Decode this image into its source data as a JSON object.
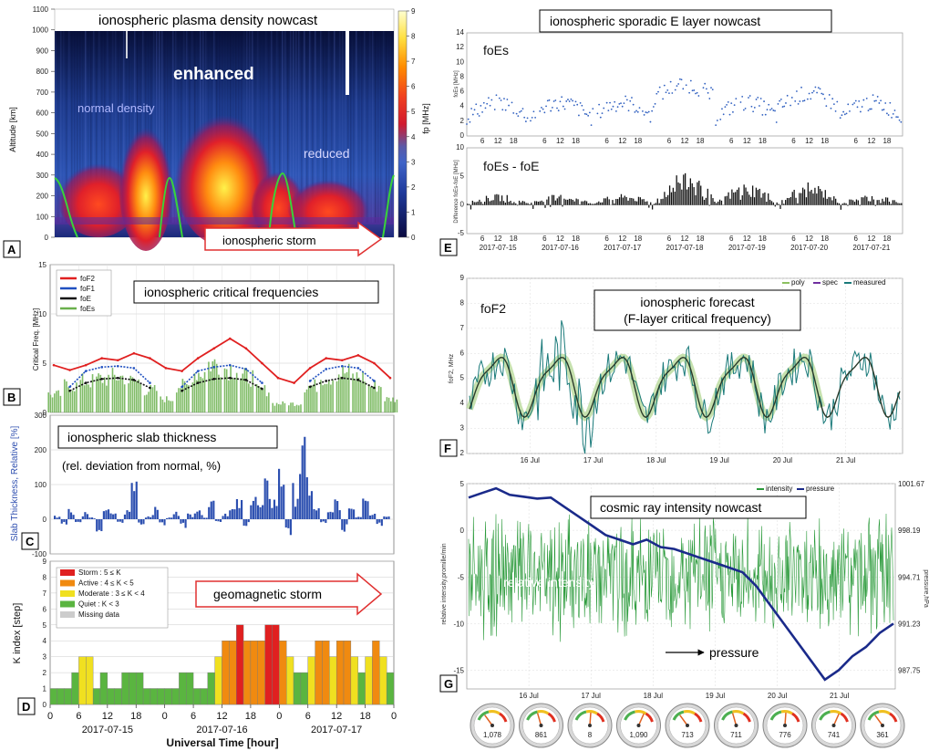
{
  "chart_data": [
    {
      "id": "A",
      "type": "heatmap",
      "title": "ionospheric plasma density   nowcast",
      "ylabel": "Altitude [km]",
      "colorbar_label": "fp [MHz]",
      "ylim": [
        0,
        1100
      ],
      "yticks": [
        "0",
        "100",
        "200",
        "300",
        "400",
        "500",
        "600",
        "700",
        "800",
        "900",
        "1000",
        "1100"
      ],
      "colorbar_ticks": [
        "0",
        "1",
        "2",
        "3",
        "4",
        "5",
        "6",
        "7",
        "8",
        "9"
      ],
      "annotations": [
        "enhanced",
        "normal density",
        "reduced",
        "ionospheric storm"
      ],
      "panel_label": "A"
    },
    {
      "id": "B",
      "type": "line",
      "title": "ionospheric critical frequencies",
      "ylabel": "Critical Freq. [MHz]",
      "ylim": [
        0,
        15
      ],
      "yticks": [
        "0",
        "5",
        "10",
        "15"
      ],
      "series": [
        {
          "name": "foF2",
          "color": "#e02020",
          "values": [
            4.8,
            4.3,
            4.8,
            5.5,
            5.3,
            6.0,
            5.5,
            4.5,
            4.2,
            5.5,
            6.5,
            7.5,
            6.5,
            5.0,
            3.5,
            3.0,
            4.5,
            5.5,
            5.3,
            5.8,
            5.0,
            3.5
          ]
        },
        {
          "name": "foF1",
          "color": "#2050c0",
          "values": [
            0,
            2.6,
            4.2,
            4.6,
            4.7,
            4.5,
            3.0,
            0,
            2.6,
            4.2,
            4.6,
            4.8,
            4.4,
            3.0,
            0,
            0,
            3.2,
            4.4,
            4.7,
            4.5,
            3.2,
            0
          ]
        },
        {
          "name": "foE",
          "color": "#111111",
          "values": [
            0,
            2.2,
            3.0,
            3.4,
            3.5,
            3.3,
            2.5,
            0,
            2.2,
            3.0,
            3.4,
            3.5,
            3.3,
            2.4,
            0,
            0,
            2.6,
            3.2,
            3.5,
            3.3,
            2.5,
            0
          ]
        },
        {
          "name": "foEs",
          "color": "#6ab04c",
          "values": [
            2.0,
            3.0,
            3.5,
            3.8,
            4.0,
            3.5,
            2.5,
            1.5,
            3.0,
            4.5,
            5.5,
            5.0,
            4.0,
            2.5,
            1.0,
            1.0,
            3.0,
            4.0,
            4.5,
            4.0,
            3.0,
            1.5
          ]
        }
      ],
      "panel_label": "B"
    },
    {
      "id": "C",
      "type": "bar",
      "title": "ionospheric slab thickness",
      "subtitle": "(rel. deviation from normal, %)",
      "ylabel": "Slab Thickness, Relative [%]",
      "ylim": [
        -100,
        300
      ],
      "yticks": [
        "-100",
        "0",
        "100",
        "200",
        "300"
      ],
      "values": [
        10,
        -20,
        30,
        -10,
        20,
        5,
        -30,
        40,
        15,
        -10,
        25,
        120,
        -20,
        10,
        30,
        -15,
        5,
        20,
        -25,
        15,
        40,
        10,
        60,
        -10,
        20,
        30,
        50,
        -20,
        80,
        40,
        100,
        60,
        140,
        -40,
        90,
        200,
        120,
        30,
        -10,
        20,
        60,
        -30,
        40,
        10,
        100,
        20,
        -20,
        15
      ],
      "panel_label": "C"
    },
    {
      "id": "D",
      "type": "bar",
      "title": "geomagnetic storm",
      "ylabel": "K index [step]",
      "xlabel": "Universal Time [hour]",
      "ylim": [
        0,
        9
      ],
      "yticks": [
        "0",
        "1",
        "2",
        "3",
        "4",
        "5",
        "6",
        "7",
        "8",
        "9"
      ],
      "xticks": [
        "0",
        "6",
        "12",
        "18",
        "0",
        "6",
        "12",
        "18",
        "0",
        "6",
        "12",
        "18",
        "0"
      ],
      "date_labels": [
        "2017-07-15",
        "2017-07-16",
        "2017-07-17"
      ],
      "legend": [
        "Storm : 5 ≤ K",
        "Active : 4 ≤ K < 5",
        "Moderate : 3 ≤ K < 4",
        "Quiet : K < 3",
        "Missing data"
      ],
      "values": [
        1,
        1,
        1,
        2,
        3,
        3,
        1,
        2,
        1,
        1,
        2,
        2,
        2,
        1,
        1,
        1,
        1,
        1,
        2,
        2,
        1,
        1,
        2,
        3,
        4,
        4,
        5,
        4,
        4,
        4,
        5,
        5,
        4,
        3,
        2,
        2,
        3,
        4,
        4,
        3,
        4,
        4,
        3,
        2,
        3,
        4,
        3,
        2
      ],
      "panel_label": "D"
    },
    {
      "id": "E",
      "type": "scatter",
      "title": "ionospheric sporadic E layer   nowcast",
      "subplots": [
        {
          "label": "foEs",
          "ylabel": "foEs [MHz]",
          "ylim": [
            0,
            14
          ],
          "yticks": [
            "0",
            "2",
            "4",
            "6",
            "8",
            "10",
            "12",
            "14"
          ]
        },
        {
          "label": "foEs - foE",
          "ylabel": "Difference foEs-foE [MHz]",
          "ylim": [
            -5,
            10
          ],
          "yticks": [
            "-5",
            "0",
            "5",
            "10"
          ]
        }
      ],
      "date_labels": [
        "2017-07-15",
        "2017-07-16",
        "2017-07-17",
        "2017-07-18",
        "2017-07-19",
        "2017-07-20",
        "2017-07-21"
      ],
      "hour_ticks": [
        "6",
        "12",
        "18"
      ],
      "panel_label": "E"
    },
    {
      "id": "F",
      "type": "line",
      "title": "ionospheric forecast",
      "subtitle": "(F-layer critical frequency)",
      "series_label": "foF2",
      "ylabel": "foF2, MHz",
      "ylim": [
        2,
        9
      ],
      "yticks": [
        "2",
        "3",
        "4",
        "5",
        "6",
        "7",
        "8",
        "9"
      ],
      "xticks": [
        "16 Jul",
        "17 Jul",
        "18 Jul",
        "19 Jul",
        "20 Jul",
        "21 Jul"
      ],
      "legend": [
        "poly",
        "spec",
        "measured"
      ],
      "panel_label": "F"
    },
    {
      "id": "G",
      "type": "line",
      "title": "cosmic ray intensity nowcast",
      "annotations": [
        "relative intensity",
        "pressure"
      ],
      "ylabel": "relative intensity,promille/min",
      "ylabel_right": "pressure,hPa",
      "ylim": [
        -17,
        5
      ],
      "yticks": [
        "5",
        "0",
        "-5",
        "-10",
        "-15"
      ],
      "yticks_right": [
        "1001.67",
        "998.19",
        "994.71",
        "991.23",
        "987.75"
      ],
      "xticks": [
        "16 Jul",
        "17 Jul",
        "18 Jul",
        "19 Jul",
        "20 Jul",
        "21 Jul"
      ],
      "legend": [
        "intensity",
        "pressure"
      ],
      "pressure_values": [
        3.5,
        4.0,
        4.5,
        3.8,
        3.6,
        3.4,
        3.5,
        2.5,
        1.5,
        0.5,
        -0.5,
        -1.0,
        -1.5,
        -1.0,
        -1.8,
        -2.0,
        -2.5,
        -3.0,
        -3.5,
        -4.0,
        -4.5,
        -6.0,
        -8.0,
        -10.0,
        -12.0,
        -14.0,
        -16.0,
        -15.0,
        -13.5,
        -12.5,
        -11.0,
        -10.0
      ],
      "gauge_labels": [
        "1,078",
        "861",
        "8",
        "1,090",
        "713",
        "711",
        "776",
        "741",
        "361"
      ],
      "panel_label": "G"
    }
  ]
}
